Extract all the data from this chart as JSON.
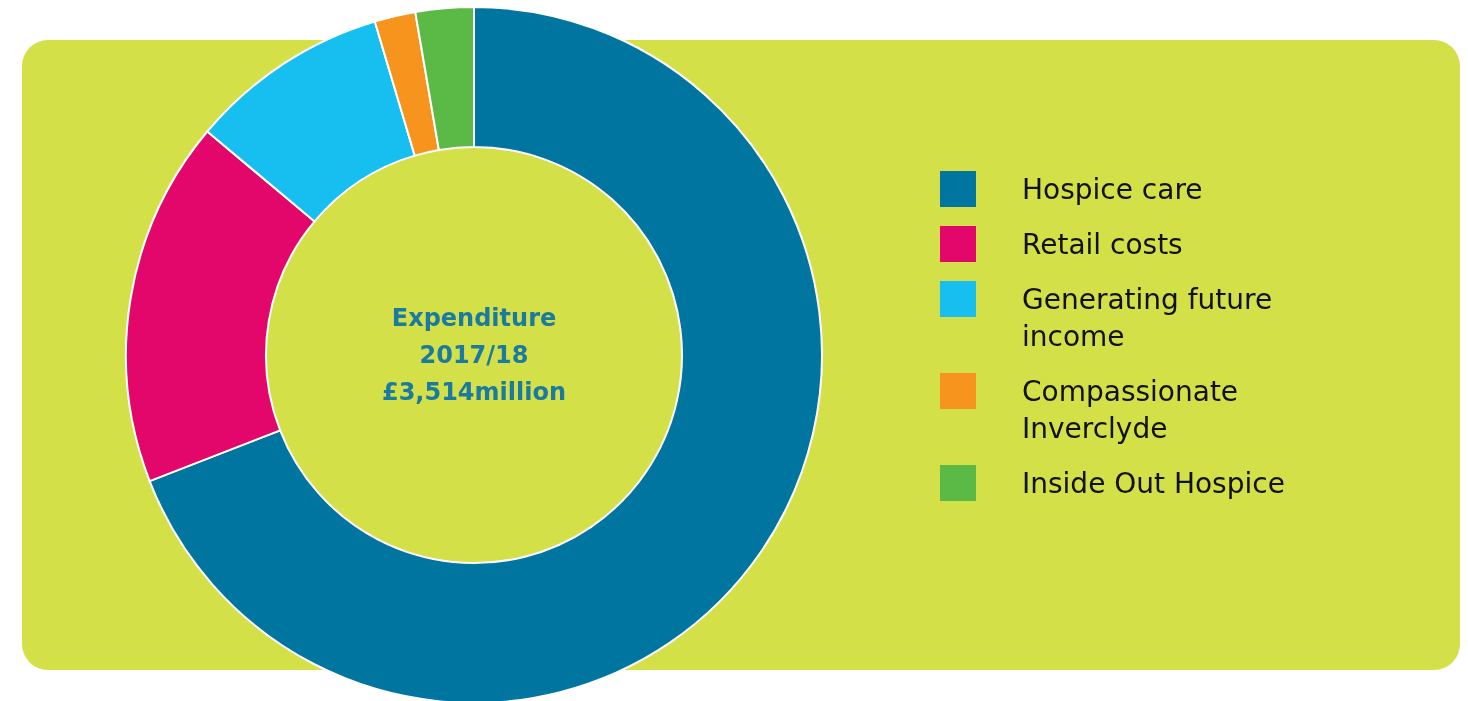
{
  "chart_data": {
    "type": "donut",
    "title": "Expenditure\n2017/18\n£3,514million",
    "categories": [
      "Hospice care",
      "Retail costs",
      "Generating future income",
      "Compassionate Inverclyde",
      "Inside Out Hospice"
    ],
    "values": [
      69.1,
      17,
      9.3,
      1.9,
      2.7
    ],
    "colors": [
      "#0075a0",
      "#e3066b",
      "#17bff0",
      "#f7941d",
      "#5bb946"
    ],
    "legend": "right"
  }
}
